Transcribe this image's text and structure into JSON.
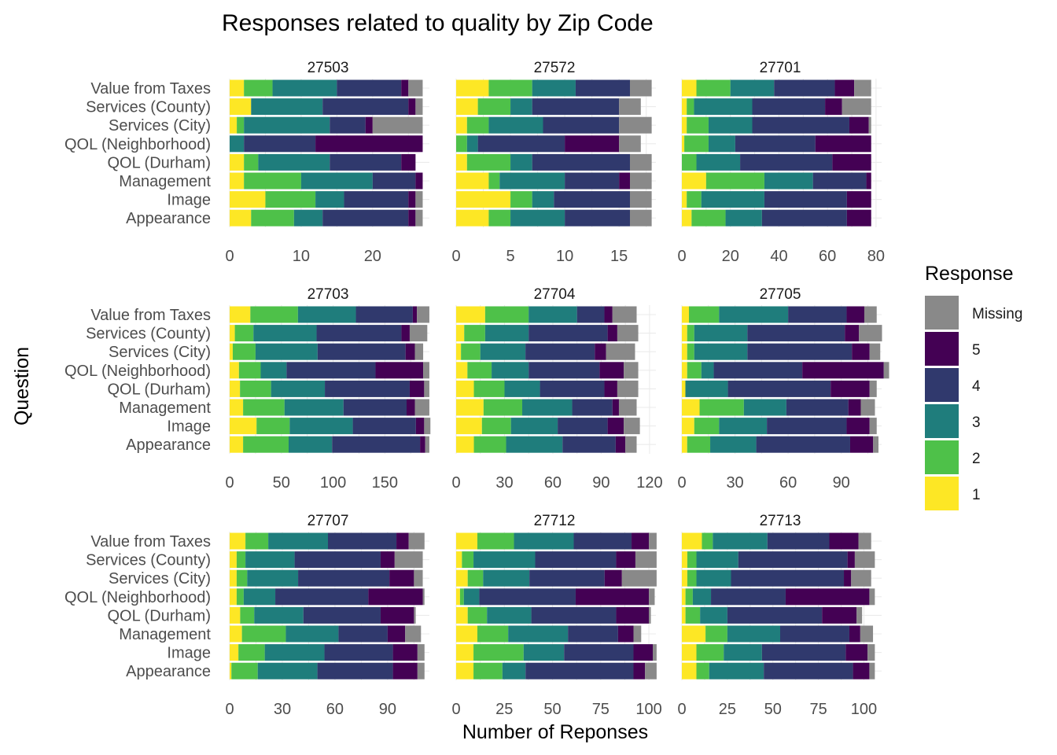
{
  "chart_data": {
    "type": "bar",
    "orientation": "horizontal",
    "stacked": true,
    "title": "Responses related to quality by Zip Code",
    "xlabel": "Number of Reponses",
    "ylabel": "Question",
    "questions": [
      "Value from Taxes",
      "Services (County)",
      "Services (City)",
      "QOL (Neighborhood)",
      "QOL (Durham)",
      "Management",
      "Image",
      "Appearance"
    ],
    "legend": {
      "title": "Response",
      "position": "right",
      "entries": [
        {
          "name": "Missing",
          "color": "#898989"
        },
        {
          "name": "5",
          "color": "#440154"
        },
        {
          "name": "4",
          "color": "#30396d"
        },
        {
          "name": "3",
          "color": "#1f7d7c"
        },
        {
          "name": "2",
          "color": "#4ec149"
        },
        {
          "name": "1",
          "color": "#fde725"
        }
      ]
    },
    "stack_order": [
      "1",
      "2",
      "3",
      "4",
      "5",
      "Missing"
    ],
    "panels": [
      {
        "zip": "27503",
        "xlim": [
          0,
          27.5
        ],
        "xticks": [
          "0",
          "10",
          "20"
        ],
        "xtick_values": [
          0,
          10,
          20
        ],
        "values": [
          [
            2,
            4,
            9,
            9,
            1,
            2
          ],
          [
            3,
            0,
            10,
            12,
            1,
            1
          ],
          [
            1,
            1,
            12,
            5,
            1,
            7
          ],
          [
            0,
            0,
            2,
            10,
            15,
            0
          ],
          [
            2,
            2,
            10,
            10,
            2,
            0
          ],
          [
            2,
            8,
            10,
            6,
            1,
            0
          ],
          [
            5,
            7,
            4,
            9,
            1,
            1
          ],
          [
            3,
            6,
            4,
            12,
            1,
            1
          ]
        ]
      },
      {
        "zip": "27572",
        "xlim": [
          0,
          18.1
        ],
        "xticks": [
          "0",
          "5",
          "10",
          "15"
        ],
        "xtick_values": [
          0,
          5,
          10,
          15
        ],
        "values": [
          [
            3,
            4,
            4,
            5,
            0,
            2
          ],
          [
            2,
            3,
            2,
            8,
            0,
            2
          ],
          [
            1,
            2,
            5,
            7,
            0,
            3
          ],
          [
            0,
            1,
            1,
            8,
            5,
            2
          ],
          [
            1,
            4,
            2,
            9,
            0,
            2
          ],
          [
            3,
            1,
            6,
            5,
            1,
            2
          ],
          [
            5,
            2,
            2,
            7,
            0,
            2
          ],
          [
            3,
            2,
            5,
            6,
            0,
            2
          ]
        ]
      },
      {
        "zip": "27701",
        "xlim": [
          0,
          81
        ],
        "xticks": [
          "0",
          "20",
          "40",
          "60",
          "80"
        ],
        "xtick_values": [
          0,
          20,
          40,
          60,
          80
        ],
        "values": [
          [
            6,
            14,
            18,
            25,
            8,
            7
          ],
          [
            2,
            3,
            24,
            30,
            7,
            12
          ],
          [
            2,
            9,
            18,
            40,
            8,
            1
          ],
          [
            1,
            10,
            11,
            33,
            23,
            0
          ],
          [
            0,
            6,
            18,
            38,
            16,
            0
          ],
          [
            10,
            24,
            20,
            22,
            2,
            0
          ],
          [
            2,
            6,
            26,
            34,
            10,
            0
          ],
          [
            4,
            14,
            15,
            35,
            10,
            0
          ]
        ]
      },
      {
        "zip": "27703",
        "xlim": [
          0,
          190
        ],
        "xticks": [
          "0",
          "50",
          "100",
          "150"
        ],
        "xtick_values": [
          0,
          50,
          100,
          150
        ],
        "values": [
          [
            20,
            46,
            56,
            55,
            4,
            12
          ],
          [
            5,
            18,
            61,
            82,
            8,
            17
          ],
          [
            3,
            22,
            60,
            85,
            9,
            8
          ],
          [
            9,
            21,
            25,
            86,
            46,
            6
          ],
          [
            10,
            30,
            52,
            82,
            14,
            5
          ],
          [
            13,
            40,
            57,
            61,
            8,
            14
          ],
          [
            26,
            32,
            61,
            61,
            8,
            6
          ],
          [
            13,
            44,
            42,
            85,
            5,
            4
          ]
        ]
      },
      {
        "zip": "27704",
        "xlim": [
          0,
          122
        ],
        "xticks": [
          "0",
          "30",
          "60",
          "90",
          "120"
        ],
        "xtick_values": [
          0,
          30,
          60,
          90,
          120
        ],
        "values": [
          [
            18,
            27,
            30,
            17,
            5,
            15
          ],
          [
            5,
            13,
            27,
            49,
            6,
            13
          ],
          [
            3,
            12,
            28,
            43,
            7,
            18
          ],
          [
            7,
            15,
            23,
            44,
            15,
            9
          ],
          [
            11,
            19,
            22,
            40,
            8,
            13
          ],
          [
            17,
            24,
            31,
            25,
            4,
            11
          ],
          [
            16,
            18,
            29,
            31,
            10,
            10
          ],
          [
            11,
            20,
            35,
            33,
            6,
            7
          ]
        ]
      },
      {
        "zip": "27705",
        "xlim": [
          0,
          111
        ],
        "xticks": [
          "0",
          "30",
          "60",
          "90"
        ],
        "xtick_values": [
          0,
          30,
          60,
          90
        ],
        "values": [
          [
            4,
            17,
            39,
            33,
            10,
            7
          ],
          [
            3,
            4,
            30,
            55,
            8,
            13
          ],
          [
            3,
            4,
            30,
            59,
            10,
            6
          ],
          [
            3,
            8,
            7,
            50,
            46,
            3
          ],
          [
            2,
            0,
            24,
            58,
            22,
            4
          ],
          [
            10,
            25,
            24,
            35,
            7,
            8
          ],
          [
            7,
            14,
            27,
            45,
            13,
            4
          ],
          [
            3,
            13,
            26,
            53,
            13,
            3
          ]
        ]
      },
      {
        "zip": "27707",
        "xlim": [
          0,
          112
        ],
        "xticks": [
          "0",
          "30",
          "60",
          "90"
        ],
        "xtick_values": [
          0,
          30,
          60,
          90
        ],
        "values": [
          [
            9,
            13,
            34,
            39,
            7,
            9
          ],
          [
            4,
            5,
            28,
            49,
            8,
            16
          ],
          [
            4,
            6,
            29,
            52,
            14,
            5
          ],
          [
            4,
            4,
            18,
            53,
            31,
            1
          ],
          [
            6,
            8,
            28,
            44,
            19,
            1
          ],
          [
            7,
            25,
            30,
            28,
            10,
            9
          ],
          [
            5,
            15,
            34,
            39,
            14,
            4
          ],
          [
            1,
            15,
            34,
            43,
            14,
            4
          ]
        ]
      },
      {
        "zip": "27712",
        "xlim": [
          0,
          102
        ],
        "xticks": [
          "0",
          "25",
          "50",
          "75",
          "100"
        ],
        "xtick_values": [
          0,
          25,
          50,
          75,
          100
        ],
        "values": [
          [
            11,
            19,
            31,
            30,
            9,
            4
          ],
          [
            3,
            6,
            32,
            42,
            10,
            11
          ],
          [
            6,
            8,
            24,
            39,
            9,
            18
          ],
          [
            2,
            2,
            8,
            50,
            38,
            3
          ],
          [
            6,
            10,
            23,
            44,
            17,
            1
          ],
          [
            11,
            16,
            31,
            26,
            8,
            4
          ],
          [
            9,
            26,
            21,
            36,
            10,
            2
          ],
          [
            9,
            15,
            12,
            56,
            6,
            6
          ]
        ]
      },
      {
        "zip": "27713",
        "xlim": [
          0,
          108
        ],
        "xticks": [
          "0",
          "25",
          "50",
          "75",
          "100"
        ],
        "xtick_values": [
          0,
          25,
          50,
          75,
          100
        ],
        "values": [
          [
            11,
            6,
            30,
            34,
            16,
            7
          ],
          [
            3,
            5,
            23,
            60,
            4,
            11
          ],
          [
            3,
            5,
            19,
            62,
            4,
            11
          ],
          [
            2,
            4,
            10,
            41,
            46,
            3
          ],
          [
            2,
            8,
            15,
            52,
            19,
            3
          ],
          [
            13,
            12,
            29,
            38,
            6,
            7
          ],
          [
            8,
            15,
            21,
            46,
            12,
            4
          ],
          [
            8,
            7,
            30,
            49,
            9,
            3
          ]
        ]
      }
    ]
  }
}
